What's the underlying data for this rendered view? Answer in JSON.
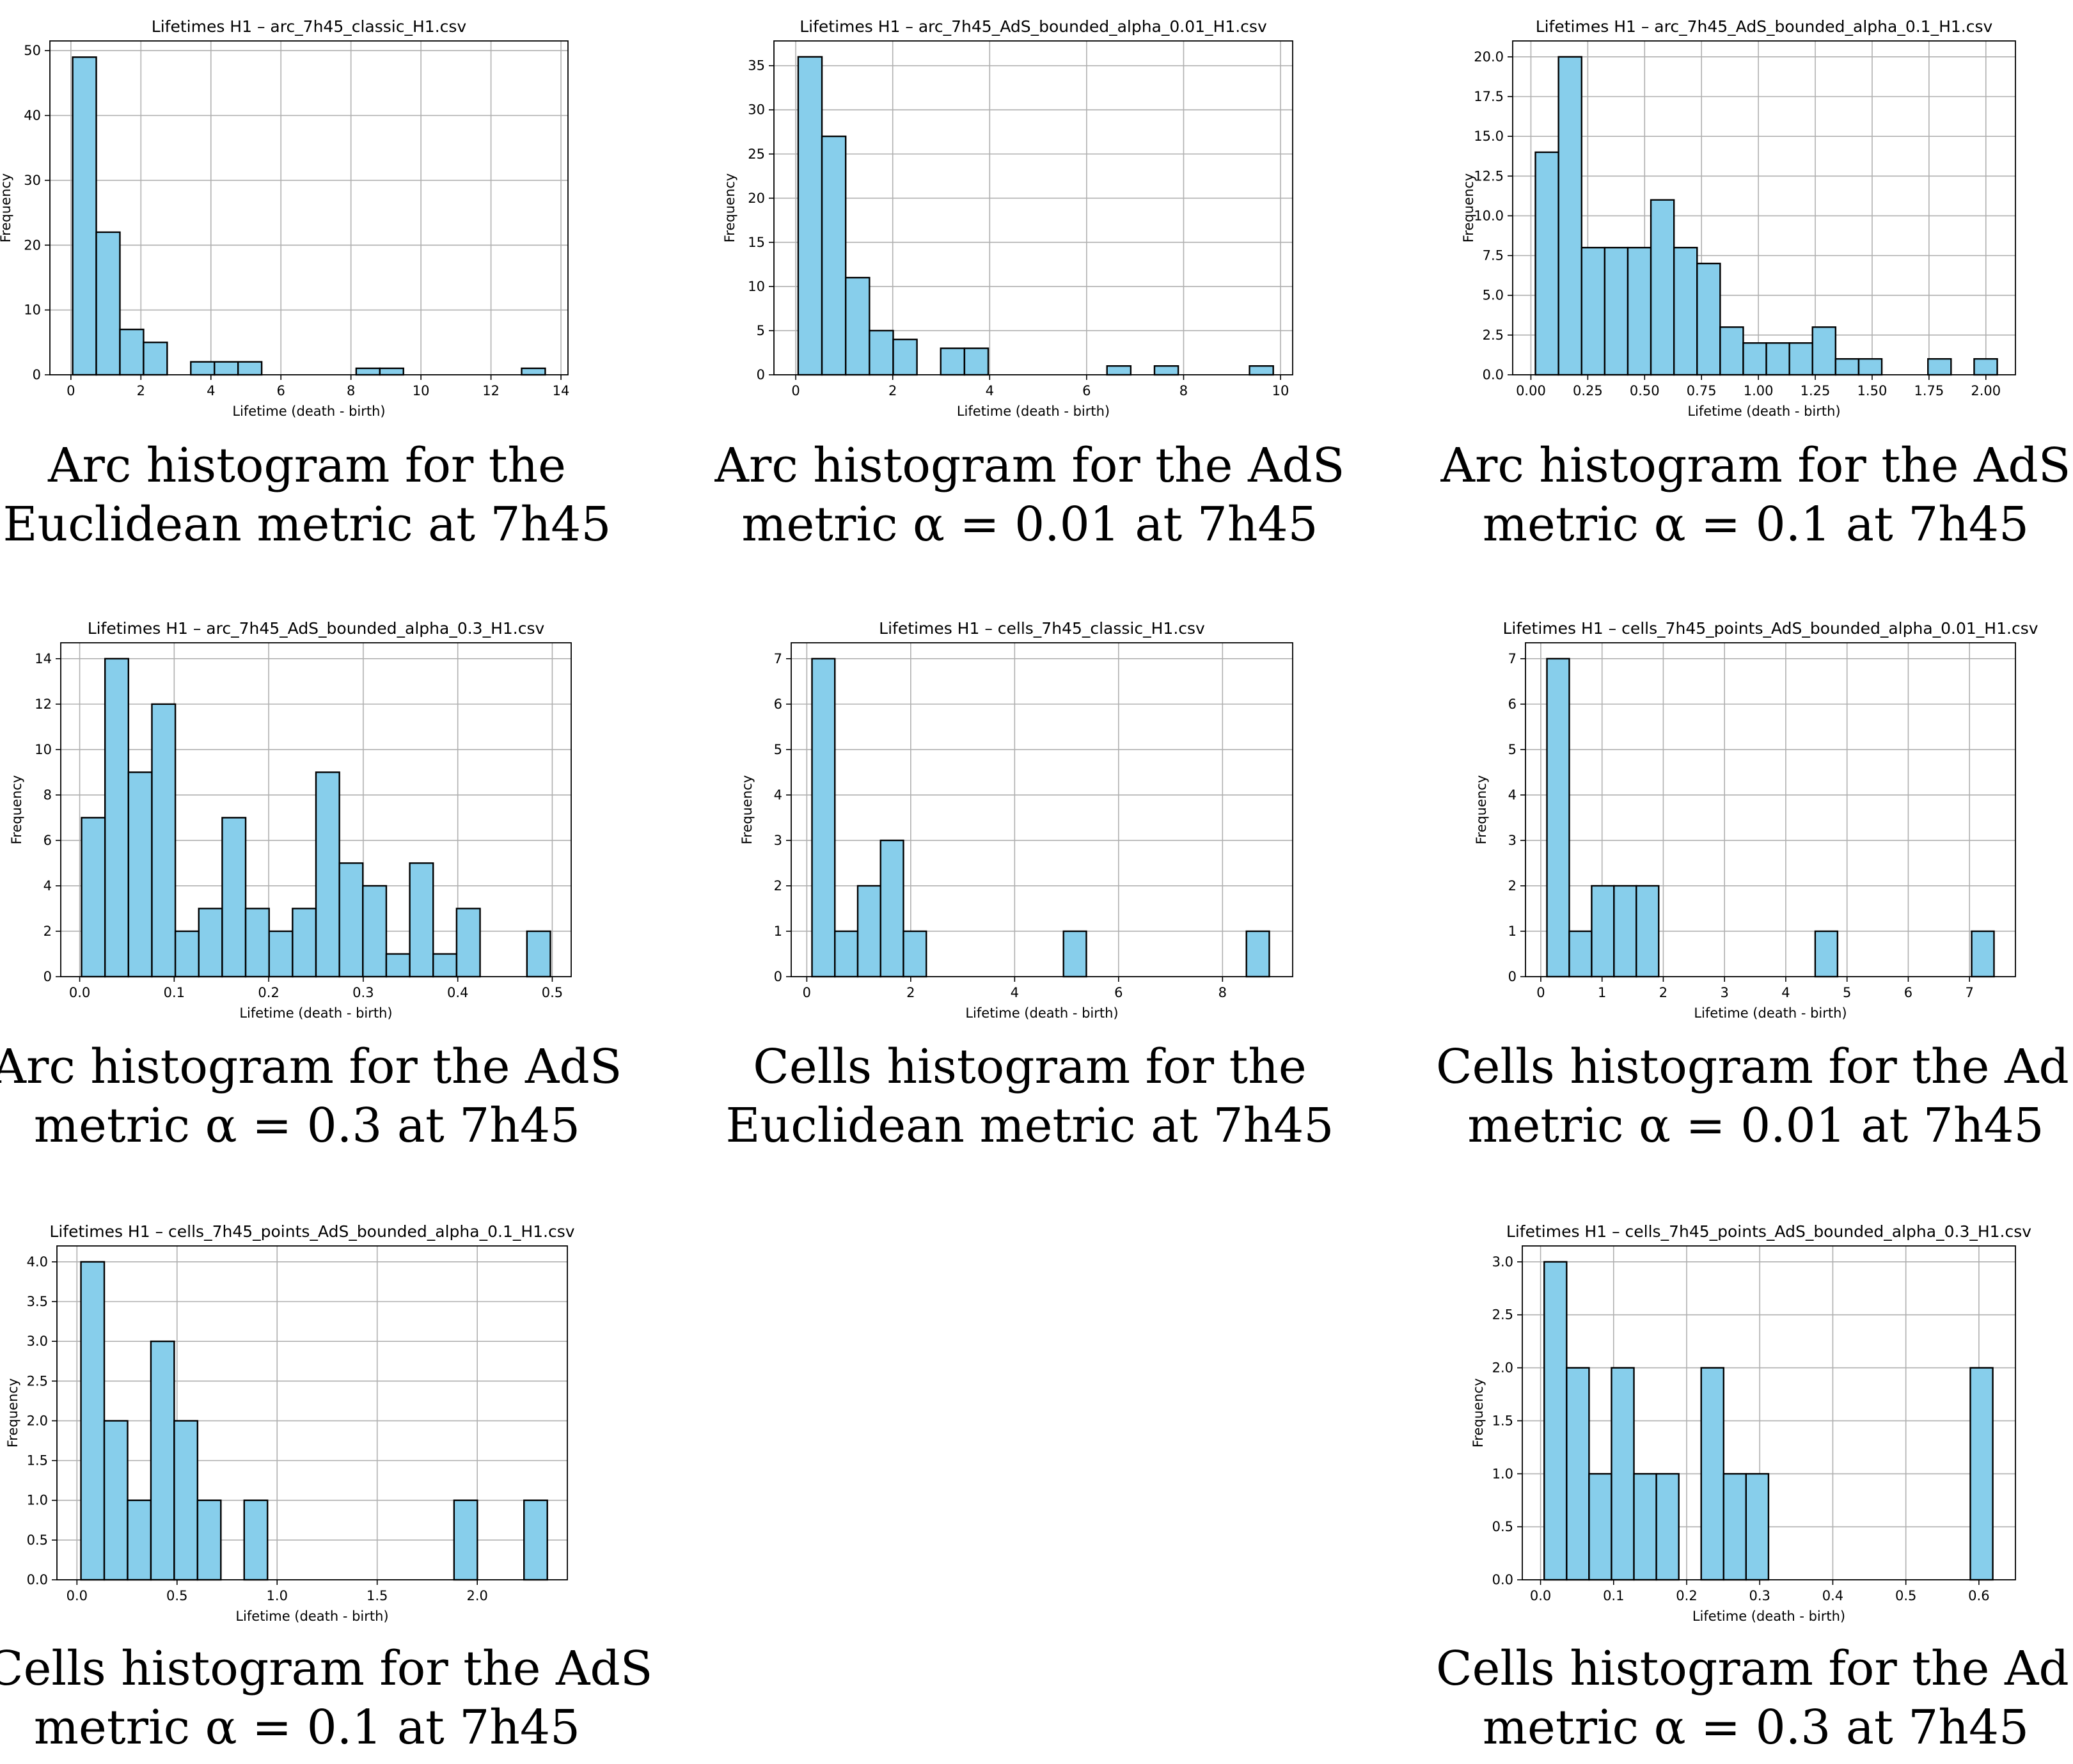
{
  "chart_data": [
    {
      "type": "bar",
      "title": "Lifetimes H1 – arc_7h45_classic_H1.csv",
      "xlabel": "Lifetime (death - birth)",
      "ylabel": "Frequency",
      "xlim": [
        -0.6,
        14.2
      ],
      "ylim": [
        0,
        51.5
      ],
      "xticks": [
        0,
        2,
        4,
        6,
        8,
        10,
        12,
        14
      ],
      "yticks": [
        0,
        10,
        20,
        30,
        40,
        50
      ],
      "bin_start": 0.05,
      "bin_width": 0.675,
      "values": [
        49,
        22,
        7,
        5,
        0,
        2,
        2,
        2,
        0,
        0,
        0,
        0,
        1,
        1,
        0,
        0,
        0,
        0,
        0,
        1
      ],
      "caption": [
        "Arc histogram for the",
        "Euclidean metric at 7h45"
      ]
    },
    {
      "type": "bar",
      "title": "Lifetimes H1 – arc_7h45_AdS_bounded_alpha_0.01_H1.csv",
      "xlabel": "Lifetime (death - birth)",
      "ylabel": "Frequency",
      "xlim": [
        -0.45,
        10.25
      ],
      "ylim": [
        0,
        37.8
      ],
      "xticks": [
        0,
        2,
        4,
        6,
        8,
        10
      ],
      "yticks": [
        0,
        5,
        10,
        15,
        20,
        25,
        30,
        35
      ],
      "bin_start": 0.05,
      "bin_width": 0.49,
      "values": [
        36,
        27,
        11,
        5,
        4,
        0,
        3,
        3,
        0,
        0,
        0,
        0,
        0,
        1,
        0,
        1,
        0,
        0,
        0,
        1
      ],
      "caption": [
        "Arc histogram for the AdS",
        "metric α = 0.01 at 7h45"
      ]
    },
    {
      "type": "bar",
      "title": "Lifetimes H1 – arc_7h45_AdS_bounded_alpha_0.1_H1.csv",
      "xlabel": "Lifetime (death - birth)",
      "ylabel": "Frequency",
      "xlim": [
        -0.08,
        2.13
      ],
      "ylim": [
        0,
        21
      ],
      "xticks": [
        0.0,
        0.25,
        0.5,
        0.75,
        1.0,
        1.25,
        1.5,
        1.75,
        2.0
      ],
      "xtick_labels": [
        "0.00",
        "0.25",
        "0.50",
        "0.75",
        "1.00",
        "1.25",
        "1.50",
        "1.75",
        "2.00"
      ],
      "yticks": [
        0.0,
        2.5,
        5.0,
        7.5,
        10.0,
        12.5,
        15.0,
        17.5,
        20.0
      ],
      "ytick_labels": [
        "0.0",
        "2.5",
        "5.0",
        "7.5",
        "10.0",
        "12.5",
        "15.0",
        "17.5",
        "20.0"
      ],
      "bin_start": 0.02,
      "bin_width": 0.1015,
      "values": [
        14,
        20,
        8,
        8,
        8,
        11,
        8,
        7,
        3,
        2,
        2,
        2,
        3,
        1,
        1,
        0,
        0,
        1,
        0,
        1
      ],
      "caption": [
        "Arc histogram for the AdS",
        "metric α = 0.1 at 7h45"
      ]
    },
    {
      "type": "bar",
      "title": "Lifetimes H1 – arc_7h45_AdS_bounded_alpha_0.3_H1.csv",
      "xlabel": "Lifetime (death - birth)",
      "ylabel": "Frequency",
      "xlim": [
        -0.02,
        0.52
      ],
      "ylim": [
        0,
        14.7
      ],
      "xticks": [
        0.0,
        0.1,
        0.2,
        0.3,
        0.4,
        0.5
      ],
      "xtick_labels": [
        "0.0",
        "0.1",
        "0.2",
        "0.3",
        "0.4",
        "0.5"
      ],
      "yticks": [
        0,
        2,
        4,
        6,
        8,
        10,
        12,
        14
      ],
      "bin_start": 0.002,
      "bin_width": 0.0248,
      "values": [
        7,
        14,
        9,
        12,
        2,
        3,
        7,
        3,
        2,
        3,
        9,
        5,
        4,
        1,
        5,
        1,
        3,
        0,
        0,
        2
      ],
      "caption": [
        "Arc histogram for the AdS",
        "metric α = 0.3 at 7h45"
      ]
    },
    {
      "type": "bar",
      "title": "Lifetimes H1 – cells_7h45_classic_H1.csv",
      "xlabel": "Lifetime (death - birth)",
      "ylabel": "Frequency",
      "xlim": [
        -0.3,
        9.35
      ],
      "ylim": [
        0,
        7.35
      ],
      "xticks": [
        0,
        2,
        4,
        6,
        8
      ],
      "yticks": [
        0,
        1,
        2,
        3,
        4,
        5,
        6,
        7
      ],
      "bin_start": 0.1,
      "bin_width": 0.44,
      "values": [
        7,
        1,
        2,
        3,
        1,
        0,
        0,
        0,
        0,
        0,
        0,
        1,
        0,
        0,
        0,
        0,
        0,
        0,
        0,
        1
      ],
      "caption": [
        "Cells histogram for the",
        "Euclidean metric at 7h45"
      ]
    },
    {
      "type": "bar",
      "title": "Lifetimes H1 – cells_7h45_points_AdS_bounded_alpha_0.01_H1.csv",
      "xlabel": "Lifetime (death - birth)",
      "ylabel": "Frequency",
      "xlim": [
        -0.25,
        7.75
      ],
      "ylim": [
        0,
        7.35
      ],
      "xticks": [
        0,
        1,
        2,
        3,
        4,
        5,
        6,
        7
      ],
      "yticks": [
        0,
        1,
        2,
        3,
        4,
        5,
        6,
        7
      ],
      "bin_start": 0.1,
      "bin_width": 0.365,
      "values": [
        7,
        1,
        2,
        2,
        2,
        0,
        0,
        0,
        0,
        0,
        0,
        0,
        1,
        0,
        0,
        0,
        0,
        0,
        0,
        1
      ],
      "caption": [
        "Cells histogram for the AdS",
        "metric α = 0.01 at 7h45"
      ]
    },
    {
      "type": "bar",
      "title": "Lifetimes H1 – cells_7h45_points_AdS_bounded_alpha_0.1_H1.csv",
      "xlabel": "Lifetime (death - birth)",
      "ylabel": "Frequency",
      "xlim": [
        -0.1,
        2.45
      ],
      "ylim": [
        0,
        4.2
      ],
      "xticks": [
        0.0,
        0.5,
        1.0,
        1.5,
        2.0
      ],
      "xtick_labels": [
        "0.0",
        "0.5",
        "1.0",
        "1.5",
        "2.0"
      ],
      "yticks": [
        0.0,
        0.5,
        1.0,
        1.5,
        2.0,
        2.5,
        3.0,
        3.5,
        4.0
      ],
      "ytick_labels": [
        "0.0",
        "0.5",
        "1.0",
        "1.5",
        "2.0",
        "2.5",
        "3.0",
        "3.5",
        "4.0"
      ],
      "bin_start": 0.02,
      "bin_width": 0.1165,
      "values": [
        4,
        2,
        1,
        3,
        2,
        1,
        0,
        1,
        0,
        0,
        0,
        0,
        0,
        0,
        0,
        0,
        1,
        0,
        0,
        1
      ],
      "caption": [
        "Cells histogram for the AdS",
        "metric α = 0.1 at 7h45"
      ]
    },
    {
      "type": "bar",
      "title": "Lifetimes H1 – cells_7h45_points_AdS_bounded_alpha_0.3_H1.csv",
      "xlabel": "Lifetime (death - birth)",
      "ylabel": "Frequency",
      "xlim": [
        -0.025,
        0.65
      ],
      "ylim": [
        0,
        3.15
      ],
      "xticks": [
        0.0,
        0.1,
        0.2,
        0.3,
        0.4,
        0.5,
        0.6
      ],
      "xtick_labels": [
        "0.0",
        "0.1",
        "0.2",
        "0.3",
        "0.4",
        "0.5",
        "0.6"
      ],
      "yticks": [
        0.0,
        0.5,
        1.0,
        1.5,
        2.0,
        2.5,
        3.0
      ],
      "ytick_labels": [
        "0.0",
        "0.5",
        "1.0",
        "1.5",
        "2.0",
        "2.5",
        "3.0"
      ],
      "bin_start": 0.005,
      "bin_width": 0.0307,
      "values": [
        3,
        2,
        1,
        2,
        1,
        1,
        0,
        2,
        1,
        1,
        0,
        0,
        0,
        0,
        0,
        0,
        0,
        0,
        0,
        2
      ],
      "caption": [
        "Cells histogram for the AdS",
        "metric α = 0.3 at 7h45"
      ]
    }
  ]
}
